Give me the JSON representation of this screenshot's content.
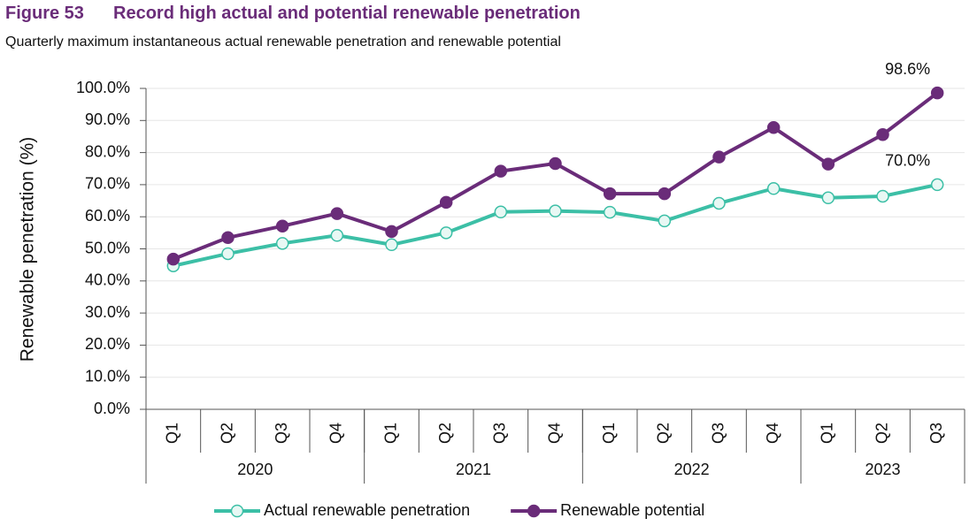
{
  "chart_data": {
    "type": "line",
    "figure_label": "Figure 53",
    "title": "Record high actual and potential renewable penetration",
    "subtitle": "Quarterly maximum instantaneous actual renewable penetration and renewable potential",
    "y_label": "Renewable penetration (%)",
    "categories": [
      "Q1",
      "Q2",
      "Q3",
      "Q4",
      "Q1",
      "Q2",
      "Q3",
      "Q4",
      "Q1",
      "Q2",
      "Q3",
      "Q4",
      "Q1",
      "Q2",
      "Q3"
    ],
    "groups": [
      {
        "label": "2020",
        "size": 4
      },
      {
        "label": "2021",
        "size": 4
      },
      {
        "label": "2022",
        "size": 4
      },
      {
        "label": "2023",
        "size": 3
      }
    ],
    "series": [
      {
        "name": "Actual renewable penetration",
        "color": "#3cbfa6",
        "marker_fill": "#e8f8f4",
        "values": [
          44.7,
          48.5,
          51.7,
          54.2,
          51.3,
          55.0,
          61.5,
          61.8,
          61.4,
          58.7,
          64.2,
          68.8,
          65.9,
          66.4,
          70.0
        ],
        "value_labels": [
          null,
          null,
          null,
          null,
          null,
          null,
          null,
          null,
          null,
          null,
          null,
          null,
          null,
          null,
          "70.0%"
        ]
      },
      {
        "name": "Renewable potential",
        "color": "#6a2c79",
        "marker_fill": "#6a2c79",
        "values": [
          46.8,
          53.5,
          57.1,
          61.0,
          55.4,
          64.5,
          74.2,
          76.6,
          67.2,
          67.2,
          78.6,
          87.8,
          76.4,
          85.6,
          98.6
        ],
        "value_labels": [
          null,
          null,
          null,
          null,
          null,
          null,
          null,
          null,
          null,
          null,
          null,
          null,
          null,
          null,
          "98.6%"
        ]
      }
    ],
    "ylim": [
      0,
      100
    ],
    "yticks": [
      {
        "value": 0,
        "label": "0.0%"
      },
      {
        "value": 10,
        "label": "10.0%"
      },
      {
        "value": 20,
        "label": "20.0%"
      },
      {
        "value": 30,
        "label": "30.0%"
      },
      {
        "value": 40,
        "label": "40.0%"
      },
      {
        "value": 50,
        "label": "50.0%"
      },
      {
        "value": 60,
        "label": "60.0%"
      },
      {
        "value": 70,
        "label": "70.0%"
      },
      {
        "value": 80,
        "label": "80.0%"
      },
      {
        "value": 90,
        "label": "90.0%"
      },
      {
        "value": 100,
        "label": "100.0%"
      }
    ],
    "grid": true
  }
}
